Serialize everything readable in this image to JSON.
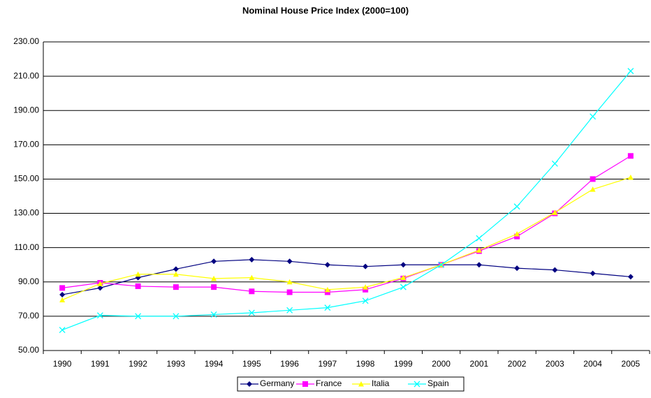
{
  "chart_data": {
    "type": "line",
    "title": "Nominal House Price Index (2000=100)",
    "categories": [
      "1990",
      "1991",
      "1992",
      "1993",
      "1994",
      "1995",
      "1996",
      "1997",
      "1998",
      "1999",
      "2000",
      "2001",
      "2002",
      "2003",
      "2004",
      "2005"
    ],
    "series": [
      {
        "name": "Germany",
        "color": "#000080",
        "marker": "diamond",
        "values": [
          82.6,
          86.5,
          92.5,
          97.5,
          102,
          103,
          102,
          100,
          99,
          100,
          100,
          100,
          98,
          97,
          95,
          93
        ]
      },
      {
        "name": "France",
        "color": "#ff00ff",
        "marker": "square",
        "values": [
          86.5,
          89.5,
          87.5,
          87,
          87,
          84.5,
          84,
          84,
          85.5,
          92,
          100,
          108,
          116.5,
          130,
          150,
          163.5
        ]
      },
      {
        "name": "Italia",
        "color": "#ffff00",
        "marker": "triangle",
        "values": [
          79.5,
          89,
          94.5,
          94.5,
          92,
          92.5,
          90,
          85.5,
          87,
          92.5,
          100,
          108.5,
          118,
          130.5,
          144,
          151
        ]
      },
      {
        "name": "Spain",
        "color": "#00ffff",
        "marker": "x",
        "values": [
          62,
          70.5,
          70,
          70,
          71,
          72,
          73.5,
          75,
          79,
          87,
          100,
          115.5,
          134,
          159,
          186.5,
          213
        ]
      }
    ],
    "ylim": [
      50,
      230
    ],
    "yticks": [
      {
        "value": 50,
        "label": "50.00"
      },
      {
        "value": 70,
        "label": "70.00"
      },
      {
        "value": 90,
        "label": "90.00"
      },
      {
        "value": 110,
        "label": "110.00"
      },
      {
        "value": 130,
        "label": "130.00"
      },
      {
        "value": 150,
        "label": "150.00"
      },
      {
        "value": 170,
        "label": "170.00"
      },
      {
        "value": 190,
        "label": "190.00"
      },
      {
        "value": 210,
        "label": "210.00"
      },
      {
        "value": 230,
        "label": "230.00"
      }
    ],
    "grid": true,
    "legend": "bottom"
  }
}
